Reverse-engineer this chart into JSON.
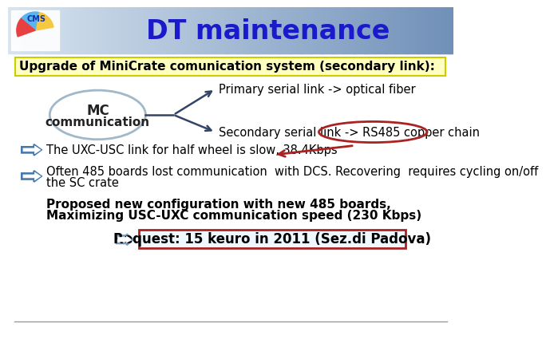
{
  "title": "DT maintenance",
  "title_color": "#1a1acc",
  "header_bg_left": "#d8e4f0",
  "header_bg_right": "#7090b8",
  "slide_bg": "#ffffff",
  "yellow_box_text": "Upgrade of MiniCrate comunication system (secondary link):",
  "yellow_box_color": "#ffffc0",
  "mc_ellipse_color": "#a0b8c8",
  "mc_text": "MC\ncommunication",
  "primary_text": "Primary serial link -> optical fiber",
  "secondary_text": "Secondary serial link -> RS485 copper chain",
  "red_ellipse_color": "#aa2222",
  "arrow1_text": "The UXC-USC link for half wheel is slow, 38.4Kbps",
  "arrow2_text_l1": "Often 485 boards lost communication  with DCS. Recovering  requires cycling on/off",
  "arrow2_text_l2": "the SC crate",
  "proposed_text_l1": "Proposed new configuration with new 485 boards,",
  "proposed_text_l2": "Maximizing USC-UXC communication speed (230 Kbps)",
  "request_text": "Request: 15 keuro in 2011 (Sez.di Padova)",
  "request_box_color": "#aa2222",
  "request_bg": "#f0f8ff",
  "bullet_arrow_color": "#5588bb",
  "bullet_arrow_outline": "#4477aa"
}
